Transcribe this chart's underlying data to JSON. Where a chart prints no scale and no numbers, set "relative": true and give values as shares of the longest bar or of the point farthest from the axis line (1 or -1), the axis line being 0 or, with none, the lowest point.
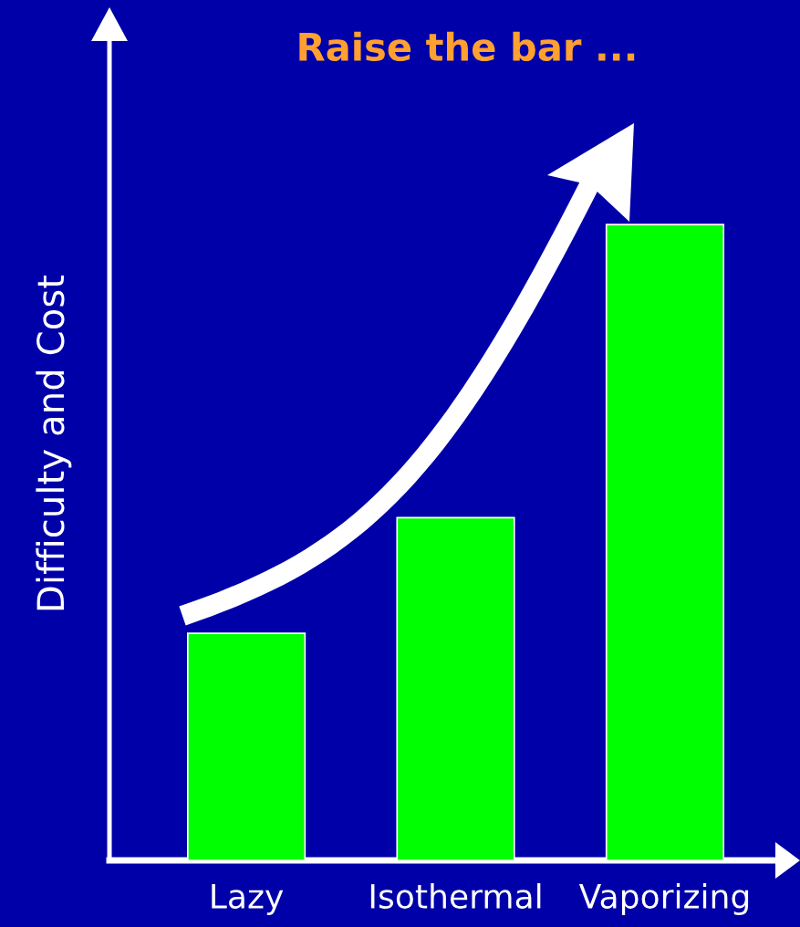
{
  "chart_data": {
    "type": "bar",
    "title": "Raise the bar ...",
    "ylabel": "Difficulty and Cost",
    "categories": [
      "Lazy",
      "Isothermal",
      "Vaporizing"
    ],
    "values": [
      0.357,
      0.539,
      1
    ],
    "color": "#00ff00",
    "relative": true
  }
}
